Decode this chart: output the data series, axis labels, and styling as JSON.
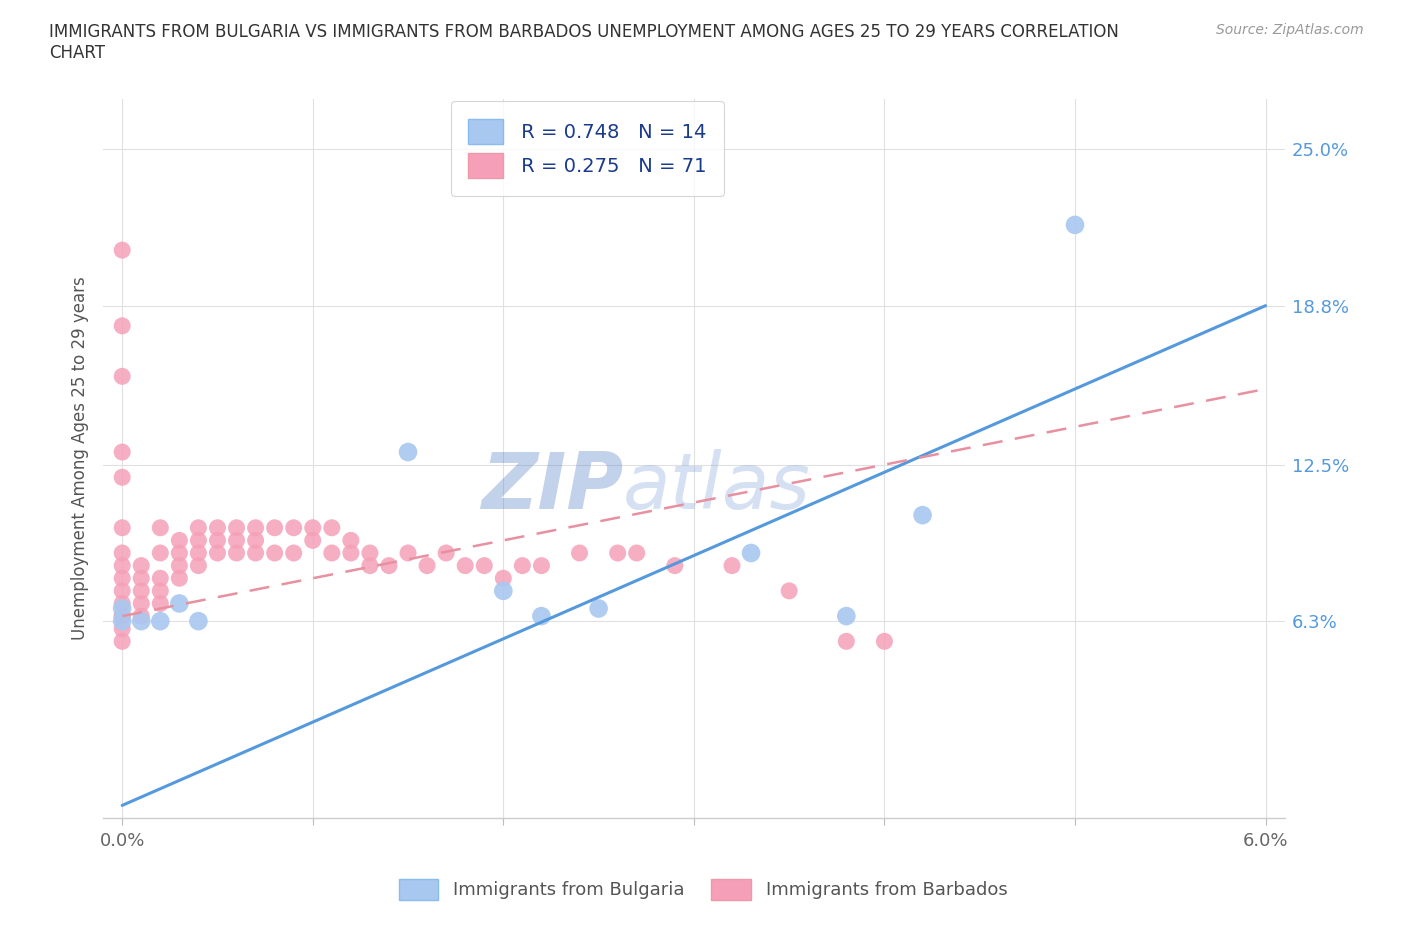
{
  "title": "IMMIGRANTS FROM BULGARIA VS IMMIGRANTS FROM BARBADOS UNEMPLOYMENT AMONG AGES 25 TO 29 YEARS CORRELATION\nCHART",
  "source_text": "Source: ZipAtlas.com",
  "ylabel": "Unemployment Among Ages 25 to 29 years",
  "xlim": [
    -0.001,
    0.061
  ],
  "ylim": [
    -0.015,
    0.27
  ],
  "yticks": [
    0.063,
    0.125,
    0.188,
    0.25
  ],
  "ytick_labels": [
    "6.3%",
    "12.5%",
    "18.8%",
    "25.0%"
  ],
  "xticks": [
    0.0,
    0.01,
    0.02,
    0.03,
    0.04,
    0.05,
    0.06
  ],
  "xtick_labels": [
    "0.0%",
    "",
    "",
    "",
    "",
    "",
    "6.0%"
  ],
  "bulgaria_color": "#a8c8f0",
  "barbados_color": "#f5a0b8",
  "bulgaria_line_color": "#5599dd",
  "barbados_line_color": "#e890a0",
  "legend_text_color": "#1a3a8b",
  "watermark_color": "#c8d8f0",
  "bg_color": "#ffffff",
  "grid_color": "#e0e0e0",
  "bulgaria_R": 0.748,
  "bulgaria_N": 14,
  "barbados_R": 0.275,
  "barbados_N": 71,
  "bul_trend_x0": 0.0,
  "bul_trend_y0": -0.01,
  "bul_trend_x1": 0.06,
  "bul_trend_y1": 0.188,
  "barb_trend_x0": 0.0,
  "barb_trend_y0": 0.065,
  "barb_trend_x1": 0.06,
  "barb_trend_y1": 0.155,
  "bulgaria_x": [
    0.0,
    0.0,
    0.001,
    0.002,
    0.003,
    0.004,
    0.015,
    0.02,
    0.022,
    0.025,
    0.033,
    0.038,
    0.042,
    0.05
  ],
  "bulgaria_y": [
    0.063,
    0.068,
    0.063,
    0.063,
    0.07,
    0.063,
    0.13,
    0.075,
    0.065,
    0.068,
    0.09,
    0.065,
    0.105,
    0.22
  ],
  "barbados_x": [
    0.0,
    0.0,
    0.0,
    0.0,
    0.0,
    0.0,
    0.0,
    0.0,
    0.0,
    0.0,
    0.0,
    0.0,
    0.0,
    0.0,
    0.0,
    0.001,
    0.001,
    0.001,
    0.001,
    0.001,
    0.002,
    0.002,
    0.002,
    0.002,
    0.002,
    0.003,
    0.003,
    0.003,
    0.003,
    0.004,
    0.004,
    0.004,
    0.004,
    0.005,
    0.005,
    0.005,
    0.006,
    0.006,
    0.006,
    0.007,
    0.007,
    0.007,
    0.008,
    0.008,
    0.009,
    0.009,
    0.01,
    0.01,
    0.011,
    0.011,
    0.012,
    0.012,
    0.013,
    0.013,
    0.014,
    0.015,
    0.016,
    0.017,
    0.018,
    0.019,
    0.02,
    0.021,
    0.022,
    0.024,
    0.026,
    0.027,
    0.029,
    0.032,
    0.035,
    0.038,
    0.04
  ],
  "barbados_y": [
    0.055,
    0.06,
    0.065,
    0.07,
    0.075,
    0.08,
    0.085,
    0.09,
    0.1,
    0.12,
    0.13,
    0.16,
    0.18,
    0.21,
    0.065,
    0.065,
    0.07,
    0.075,
    0.08,
    0.085,
    0.07,
    0.075,
    0.08,
    0.09,
    0.1,
    0.08,
    0.085,
    0.09,
    0.095,
    0.085,
    0.09,
    0.095,
    0.1,
    0.09,
    0.095,
    0.1,
    0.09,
    0.095,
    0.1,
    0.09,
    0.095,
    0.1,
    0.09,
    0.1,
    0.09,
    0.1,
    0.095,
    0.1,
    0.09,
    0.1,
    0.09,
    0.095,
    0.085,
    0.09,
    0.085,
    0.09,
    0.085,
    0.09,
    0.085,
    0.085,
    0.08,
    0.085,
    0.085,
    0.09,
    0.09,
    0.09,
    0.085,
    0.085,
    0.075,
    0.055,
    0.055
  ]
}
